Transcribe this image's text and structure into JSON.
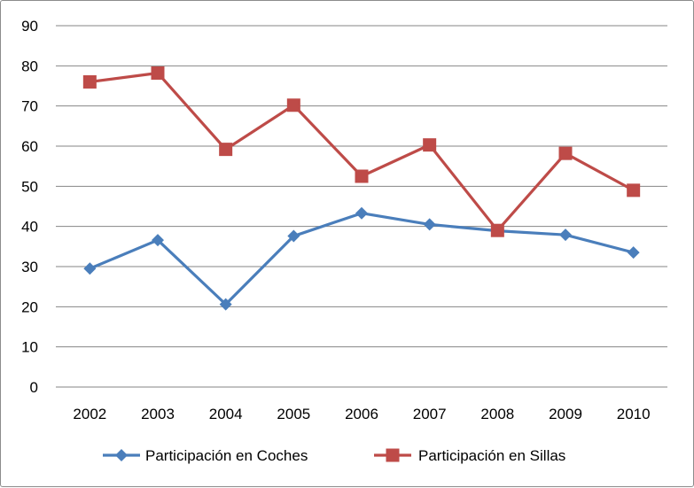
{
  "chart_data": {
    "type": "line",
    "title": "",
    "xlabel": "",
    "ylabel": "",
    "categories": [
      "2002",
      "2003",
      "2004",
      "2005",
      "2006",
      "2007",
      "2008",
      "2009",
      "2010"
    ],
    "ylim": [
      0,
      90
    ],
    "yticks": [
      0,
      10,
      20,
      30,
      40,
      50,
      60,
      70,
      80,
      90
    ],
    "grid": true,
    "legend_position": "bottom",
    "series": [
      {
        "name": "Participación en Coches",
        "color": "#4a7ebb",
        "marker": "diamond",
        "values": [
          29.5,
          36.6,
          20.6,
          37.6,
          43.3,
          40.5,
          38.9,
          37.9,
          33.5
        ]
      },
      {
        "name": "Participación en Sillas",
        "color": "#be4b48",
        "marker": "square",
        "values": [
          76.0,
          78.2,
          59.2,
          70.2,
          52.5,
          60.3,
          39.0,
          58.2,
          49.0
        ]
      }
    ]
  }
}
